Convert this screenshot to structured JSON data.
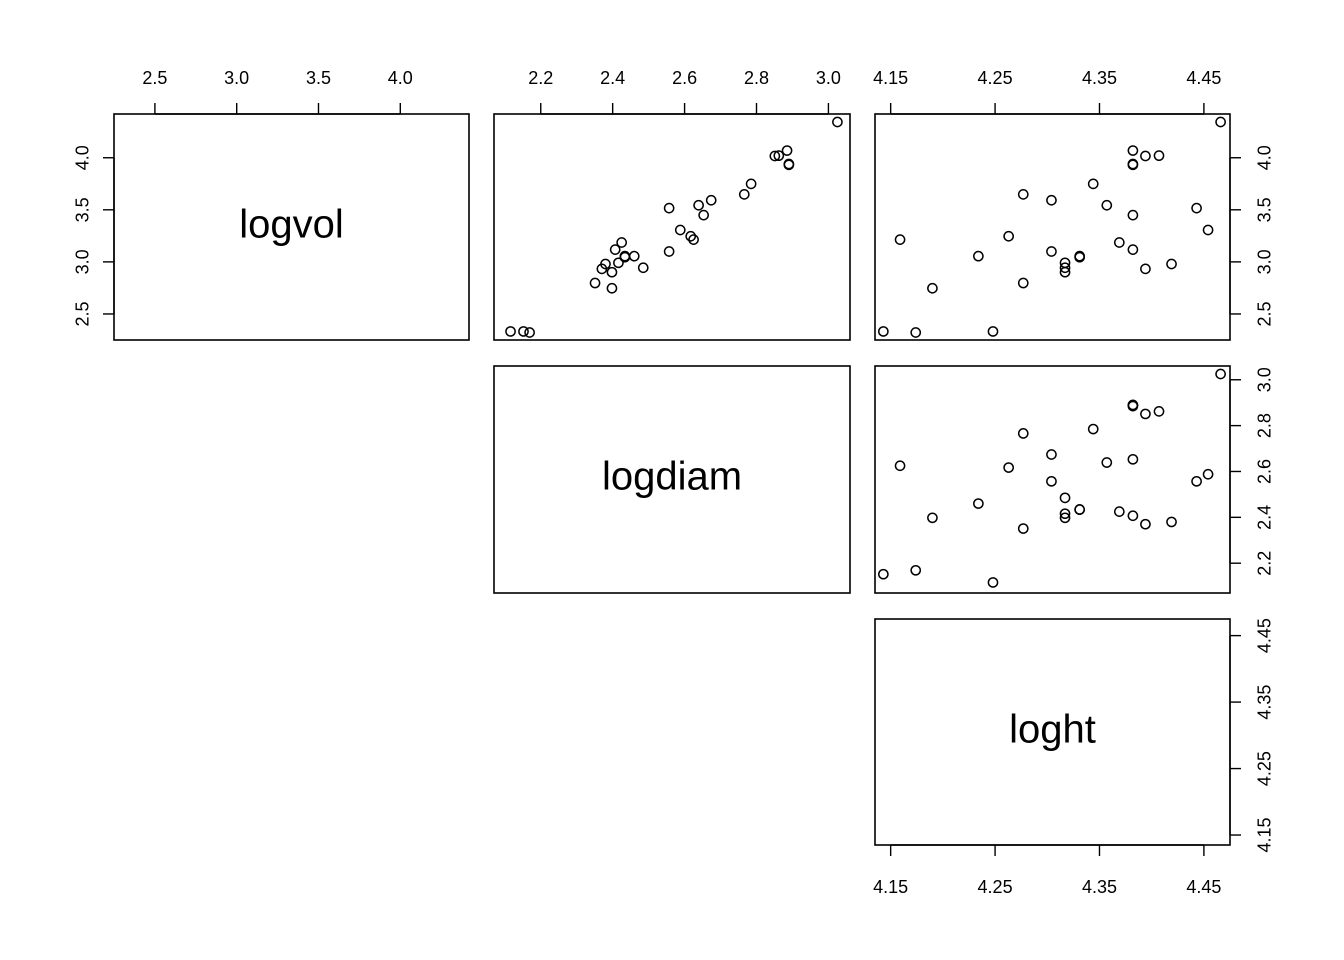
{
  "chart_data": {
    "type": "scatter",
    "variables": [
      "logvol",
      "logdiam",
      "loght"
    ],
    "axis_ticks": {
      "logvol": [
        2.5,
        3.0,
        3.5,
        4.0
      ],
      "logdiam": [
        2.2,
        2.4,
        2.6,
        2.8,
        3.0
      ],
      "loght": [
        4.15,
        4.25,
        4.35,
        4.45
      ]
    },
    "axis_tick_labels": {
      "logvol": [
        "2.5",
        "3.0",
        "3.5",
        "4.0"
      ],
      "logdiam": [
        "2.2",
        "2.4",
        "2.6",
        "2.8",
        "3.0"
      ],
      "loght": [
        "4.15",
        "4.25",
        "4.35",
        "4.45"
      ]
    },
    "axis_ranges": {
      "logvol": [
        2.25,
        4.42
      ],
      "logdiam": [
        2.07,
        3.06
      ],
      "loght": [
        4.135,
        4.475
      ]
    },
    "points": [
      {
        "logvol": 2.332,
        "logdiam": 2.116,
        "loght": 4.248
      },
      {
        "logvol": 2.332,
        "logdiam": 2.152,
        "loght": 4.143
      },
      {
        "logvol": 2.322,
        "logdiam": 2.169,
        "loght": 4.174
      },
      {
        "logvol": 2.797,
        "logdiam": 2.351,
        "loght": 4.277
      },
      {
        "logvol": 2.933,
        "logdiam": 2.37,
        "loght": 4.394
      },
      {
        "logvol": 2.98,
        "logdiam": 2.38,
        "loght": 4.419
      },
      {
        "logvol": 2.747,
        "logdiam": 2.398,
        "loght": 4.19
      },
      {
        "logvol": 2.901,
        "logdiam": 2.398,
        "loght": 4.317
      },
      {
        "logvol": 3.118,
        "logdiam": 2.407,
        "loght": 4.382
      },
      {
        "logvol": 2.991,
        "logdiam": 2.416,
        "loght": 4.317
      },
      {
        "logvol": 3.186,
        "logdiam": 2.425,
        "loght": 4.369
      },
      {
        "logvol": 3.045,
        "logdiam": 2.434,
        "loght": 4.331
      },
      {
        "logvol": 3.055,
        "logdiam": 2.434,
        "loght": 4.331
      },
      {
        "logvol": 3.055,
        "logdiam": 2.46,
        "loght": 4.234
      },
      {
        "logvol": 2.944,
        "logdiam": 2.485,
        "loght": 4.317
      },
      {
        "logvol": 3.1,
        "logdiam": 2.557,
        "loght": 4.304
      },
      {
        "logvol": 3.516,
        "logdiam": 2.557,
        "loght": 4.443
      },
      {
        "logvol": 3.306,
        "logdiam": 2.588,
        "loght": 4.454
      },
      {
        "logvol": 3.246,
        "logdiam": 2.617,
        "loght": 4.263
      },
      {
        "logvol": 3.214,
        "logdiam": 2.625,
        "loght": 4.159
      },
      {
        "logvol": 3.544,
        "logdiam": 2.639,
        "loght": 4.357
      },
      {
        "logvol": 3.449,
        "logdiam": 2.653,
        "loght": 4.382
      },
      {
        "logvol": 3.592,
        "logdiam": 2.674,
        "loght": 4.304
      },
      {
        "logvol": 3.648,
        "logdiam": 2.766,
        "loght": 4.277
      },
      {
        "logvol": 3.749,
        "logdiam": 2.785,
        "loght": 4.344
      },
      {
        "logvol": 4.017,
        "logdiam": 2.851,
        "loght": 4.394
      },
      {
        "logvol": 4.02,
        "logdiam": 2.862,
        "loght": 4.407
      },
      {
        "logvol": 4.069,
        "logdiam": 2.885,
        "loght": 4.382
      },
      {
        "logvol": 3.932,
        "logdiam": 2.89,
        "loght": 4.382
      },
      {
        "logvol": 3.94,
        "logdiam": 2.89,
        "loght": 4.382
      },
      {
        "logvol": 4.343,
        "logdiam": 3.025,
        "loght": 4.466
      }
    ]
  }
}
